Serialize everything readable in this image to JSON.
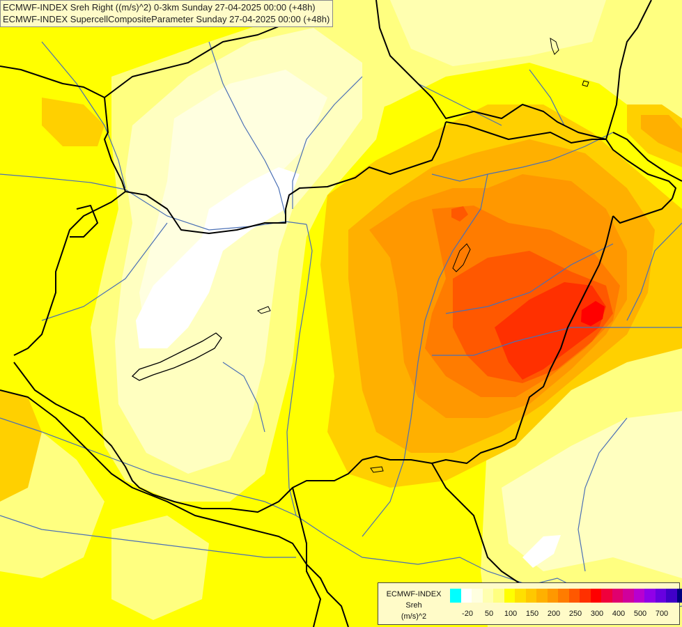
{
  "title": {
    "line1": "ECMWF-INDEX Sreh Right ((m/s)^2) 0-3km Sunday 27-04-2025 00:00 (+48h)",
    "line2": "ECMWF-INDEX SupercellCompositeParameter Sunday 27-04-2025 00:00 (+48h)"
  },
  "legend": {
    "label_line1": "ECMWF-INDEX",
    "label_line2": "Sreh",
    "label_line3": "(m/s)^2",
    "colors": [
      "#00ffff",
      "#ffffff",
      "#ffffe0",
      "#ffffb0",
      "#ffff80",
      "#ffff00",
      "#ffe000",
      "#ffc800",
      "#ffb000",
      "#ff9800",
      "#ff7c00",
      "#ff5800",
      "#ff3000",
      "#ff0000",
      "#f0003c",
      "#e0006e",
      "#d0009c",
      "#b800d0",
      "#9000e8",
      "#6800e0",
      "#4000c8",
      "#000080"
    ],
    "ticks": [
      {
        "label": "-20",
        "pos": 1.5
      },
      {
        "label": "50",
        "pos": 3.5
      },
      {
        "label": "100",
        "pos": 5.5
      },
      {
        "label": "150",
        "pos": 7.5
      },
      {
        "label": "200",
        "pos": 9.5
      },
      {
        "label": "250",
        "pos": 11.5
      },
      {
        "label": "300",
        "pos": 13.5
      },
      {
        "label": "400",
        "pos": 15.5
      },
      {
        "label": "500",
        "pos": 17.5
      },
      {
        "label": "700",
        "pos": 19.5
      }
    ]
  },
  "colors": {
    "background": "#ffff00",
    "border_line": "#000000",
    "river_line": "#4a6fb5",
    "lake_outline": "#000000"
  }
}
